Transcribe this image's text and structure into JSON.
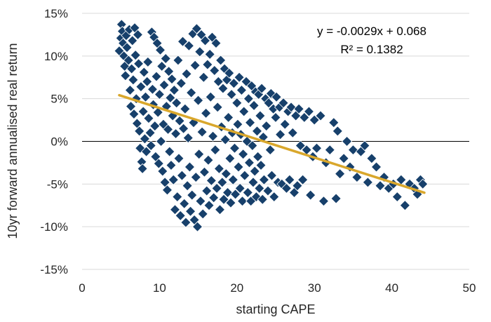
{
  "chart_data": {
    "type": "scatter",
    "xlabel": "starting CAPE",
    "ylabel": "10yr forward annualised real return",
    "xlim": [
      0,
      50
    ],
    "ylim": [
      -0.15,
      0.15
    ],
    "x_ticks": [
      0,
      10,
      20,
      30,
      40,
      50
    ],
    "x_tick_labels": [
      "0",
      "10",
      "20",
      "30",
      "40",
      "50"
    ],
    "y_ticks": [
      -0.15,
      -0.1,
      -0.05,
      0,
      0.05,
      0.1,
      0.15
    ],
    "y_tick_labels": [
      "-15%",
      "-10%",
      "-5%",
      "0%",
      "5%",
      "10%",
      "15%"
    ],
    "grid": "horizontal",
    "marker": "diamond",
    "marker_color": "#17406b",
    "trendline": {
      "slope": -0.0029,
      "intercept": 0.068,
      "x_range": [
        4.8,
        44.2
      ],
      "color": "#d9a72c",
      "equation": "y = -0.0029x + 0.068",
      "r2": "R² = 0.1382"
    },
    "points": [
      [
        4.8,
        0.106
      ],
      [
        5.0,
        0.121
      ],
      [
        5.1,
        0.137
      ],
      [
        5.2,
        0.129
      ],
      [
        5.3,
        0.115
      ],
      [
        5.4,
        0.1
      ],
      [
        5.5,
        0.088
      ],
      [
        5.6,
        0.077
      ],
      [
        5.7,
        0.124
      ],
      [
        5.8,
        0.11
      ],
      [
        6.0,
        0.095
      ],
      [
        6.1,
        0.131
      ],
      [
        6.2,
        0.06
      ],
      [
        6.3,
        0.041
      ],
      [
        6.4,
        0.085
      ],
      [
        6.5,
        0.118
      ],
      [
        6.6,
        0.072
      ],
      [
        6.7,
        0.032
      ],
      [
        6.8,
        0.133
      ],
      [
        6.9,
        0.101
      ],
      [
        7.0,
        0.05
      ],
      [
        7.1,
        0.021
      ],
      [
        7.2,
        0.125
      ],
      [
        7.3,
        0.091
      ],
      [
        7.4,
        0.012
      ],
      [
        7.5,
        -0.008
      ],
      [
        7.6,
        0.064
      ],
      [
        7.7,
        -0.024
      ],
      [
        7.8,
        -0.032
      ],
      [
        7.9,
        0.035
      ],
      [
        8.0,
        0.081
      ],
      [
        8.1,
        0.003
      ],
      [
        8.2,
        0.052
      ],
      [
        8.3,
        -0.012
      ],
      [
        8.4,
        0.07
      ],
      [
        8.5,
        0.093
      ],
      [
        8.6,
        0.027
      ],
      [
        8.8,
        0.01
      ],
      [
        8.9,
        -0.005
      ],
      [
        9.0,
        0.128
      ],
      [
        9.1,
        0.061
      ],
      [
        9.2,
        0.043
      ],
      [
        9.3,
        0.122
      ],
      [
        9.4,
        0.018
      ],
      [
        9.5,
        -0.018
      ],
      [
        9.6,
        0.076
      ],
      [
        9.7,
        0.115
      ],
      [
        9.8,
        0.034
      ],
      [
        9.9,
        -0.026
      ],
      [
        10.0,
        0.055
      ],
      [
        10.1,
        0.107
      ],
      [
        10.2,
        0.0
      ],
      [
        10.3,
        0.088
      ],
      [
        10.4,
        -0.035
      ],
      [
        10.5,
        0.02
      ],
      [
        10.6,
        0.066
      ],
      [
        10.7,
        -0.048
      ],
      [
        10.8,
        0.097
      ],
      [
        10.9,
        0.041
      ],
      [
        11.0,
        -0.057
      ],
      [
        11.1,
        0.014
      ],
      [
        11.2,
        0.082
      ],
      [
        11.3,
        -0.012
      ],
      [
        11.4,
        0.051
      ],
      [
        11.5,
        -0.028
      ],
      [
        11.6,
        0.073
      ],
      [
        11.7,
        0.03
      ],
      [
        11.8,
        -0.045
      ],
      [
        11.9,
        0.06
      ],
      [
        12.0,
        -0.08
      ],
      [
        12.1,
        0.009
      ],
      [
        12.2,
        0.045
      ],
      [
        12.3,
        -0.065
      ],
      [
        12.4,
        0.095
      ],
      [
        12.5,
        -0.02
      ],
      [
        12.6,
        0.024
      ],
      [
        12.7,
        -0.087
      ],
      [
        12.8,
        0.068
      ],
      [
        12.9,
        -0.04
      ],
      [
        13.0,
        0.117
      ],
      [
        13.1,
        0.015
      ],
      [
        13.2,
        -0.073
      ],
      [
        13.3,
        0.038
      ],
      [
        13.4,
        -0.095
      ],
      [
        13.5,
        0.079
      ],
      [
        13.6,
        -0.052
      ],
      [
        13.7,
        0.004
      ],
      [
        13.8,
        0.112
      ],
      [
        13.9,
        -0.03
      ],
      [
        14.0,
        -0.082
      ],
      [
        14.1,
        0.057
      ],
      [
        14.2,
        -0.063
      ],
      [
        14.3,
        0.126
      ],
      [
        14.4,
        0.022
      ],
      [
        14.5,
        -0.092
      ],
      [
        14.6,
        0.089
      ],
      [
        14.7,
        -0.042
      ],
      [
        14.8,
        0.132
      ],
      [
        14.9,
        -0.1
      ],
      [
        15.0,
        0.048
      ],
      [
        15.1,
        -0.015
      ],
      [
        15.2,
        0.105
      ],
      [
        15.3,
        -0.07
      ],
      [
        15.4,
        0.125
      ],
      [
        15.5,
        0.011
      ],
      [
        15.6,
        -0.085
      ],
      [
        15.7,
        0.075
      ],
      [
        15.8,
        -0.036
      ],
      [
        15.9,
        0.118
      ],
      [
        16.0,
        0.033
      ],
      [
        16.1,
        -0.058
      ],
      [
        16.2,
        0.09
      ],
      [
        16.3,
        -0.022
      ],
      [
        16.4,
        -0.075
      ],
      [
        16.5,
        0.102
      ],
      [
        16.6,
        0.052
      ],
      [
        16.7,
        -0.046
      ],
      [
        16.8,
        0.122
      ],
      [
        16.9,
        0.006
      ],
      [
        17.0,
        -0.066
      ],
      [
        17.1,
        0.083
      ],
      [
        17.2,
        -0.01
      ],
      [
        17.3,
        0.115
      ],
      [
        17.4,
        -0.055
      ],
      [
        17.5,
        0.04
      ],
      [
        17.6,
        0.07
      ],
      [
        17.7,
        -0.032
      ],
      [
        17.8,
        -0.08
      ],
      [
        17.9,
        0.095
      ],
      [
        18.0,
        0.017
      ],
      [
        18.1,
        -0.048
      ],
      [
        18.2,
        0.062
      ],
      [
        18.3,
        -0.068
      ],
      [
        18.4,
        0.085
      ],
      [
        18.5,
        0.002
      ],
      [
        18.6,
        -0.038
      ],
      [
        18.7,
        0.072
      ],
      [
        18.8,
        -0.06
      ],
      [
        18.9,
        0.028
      ],
      [
        19.0,
        0.08
      ],
      [
        19.1,
        -0.02
      ],
      [
        19.2,
        -0.072
      ],
      [
        19.3,
        0.055
      ],
      [
        19.4,
        0.01
      ],
      [
        19.5,
        -0.045
      ],
      [
        19.6,
        0.068
      ],
      [
        19.7,
        -0.008
      ],
      [
        19.8,
        -0.062
      ],
      [
        20.0,
        0.045
      ],
      [
        20.1,
        0.02
      ],
      [
        20.2,
        -0.03
      ],
      [
        20.3,
        0.075
      ],
      [
        20.4,
        -0.055
      ],
      [
        20.5,
        0.008
      ],
      [
        20.6,
        0.06
      ],
      [
        20.7,
        -0.07
      ],
      [
        20.8,
        -0.015
      ],
      [
        20.9,
        0.035
      ],
      [
        21.0,
        -0.04
      ],
      [
        21.2,
        0.07
      ],
      [
        21.3,
        0.0
      ],
      [
        21.4,
        -0.06
      ],
      [
        21.5,
        0.05
      ],
      [
        21.6,
        -0.025
      ],
      [
        21.7,
        0.022
      ],
      [
        21.8,
        -0.07
      ],
      [
        21.9,
        0.065
      ],
      [
        22.0,
        -0.005
      ],
      [
        22.1,
        -0.048
      ],
      [
        22.2,
        0.042
      ],
      [
        22.3,
        -0.035
      ],
      [
        22.4,
        0.058
      ],
      [
        22.5,
        -0.065
      ],
      [
        22.6,
        0.012
      ],
      [
        22.7,
        -0.018
      ],
      [
        22.8,
        0.055
      ],
      [
        22.9,
        -0.055
      ],
      [
        23.0,
        0.03
      ],
      [
        23.1,
        -0.028
      ],
      [
        23.2,
        0.062
      ],
      [
        23.3,
        -0.068
      ],
      [
        23.4,
        0.005
      ],
      [
        23.5,
        -0.045
      ],
      [
        23.7,
        0.05
      ],
      [
        23.8,
        0.018
      ],
      [
        24.0,
        -0.058
      ],
      [
        24.1,
        0.045
      ],
      [
        24.3,
        -0.01
      ],
      [
        24.4,
        0.056
      ],
      [
        24.5,
        -0.04
      ],
      [
        24.7,
        0.038
      ],
      [
        24.8,
        -0.065
      ],
      [
        25.0,
        0.028
      ],
      [
        25.1,
        0.052
      ],
      [
        25.3,
        -0.048
      ],
      [
        25.5,
        0.04
      ],
      [
        25.6,
        0.008
      ],
      [
        25.8,
        -0.05
      ],
      [
        26.0,
        0.045
      ],
      [
        26.2,
        0.02
      ],
      [
        26.4,
        -0.055
      ],
      [
        26.6,
        0.035
      ],
      [
        26.8,
        -0.045
      ],
      [
        27.0,
        0.04
      ],
      [
        27.2,
        0.01
      ],
      [
        27.4,
        -0.06
      ],
      [
        27.6,
        0.03
      ],
      [
        27.8,
        -0.052
      ],
      [
        28.0,
        0.038
      ],
      [
        28.2,
        -0.005
      ],
      [
        28.5,
        -0.045
      ],
      [
        28.7,
        0.028
      ],
      [
        29.0,
        -0.01
      ],
      [
        29.3,
        0.035
      ],
      [
        29.5,
        -0.063
      ],
      [
        29.8,
        -0.018
      ],
      [
        30.0,
        0.025
      ],
      [
        30.3,
        -0.008
      ],
      [
        30.8,
        0.03
      ],
      [
        31.2,
        -0.07
      ],
      [
        31.5,
        -0.025
      ],
      [
        32.0,
        -0.01
      ],
      [
        32.5,
        0.022
      ],
      [
        32.8,
        -0.067
      ],
      [
        33.0,
        0.012
      ],
      [
        33.3,
        -0.038
      ],
      [
        33.8,
        -0.02
      ],
      [
        34.2,
        0.0
      ],
      [
        34.6,
        -0.03
      ],
      [
        35.0,
        -0.01
      ],
      [
        35.5,
        -0.042
      ],
      [
        36.0,
        -0.012
      ],
      [
        36.5,
        -0.005
      ],
      [
        36.9,
        -0.048
      ],
      [
        37.4,
        -0.02
      ],
      [
        38.0,
        -0.03
      ],
      [
        38.5,
        -0.052
      ],
      [
        39.0,
        -0.042
      ],
      [
        39.6,
        -0.055
      ],
      [
        40.2,
        -0.05
      ],
      [
        40.7,
        -0.065
      ],
      [
        41.2,
        -0.045
      ],
      [
        41.7,
        -0.075
      ],
      [
        42.3,
        -0.05
      ],
      [
        42.9,
        -0.055
      ],
      [
        43.3,
        -0.062
      ],
      [
        43.7,
        -0.045
      ],
      [
        44.0,
        -0.05
      ]
    ]
  }
}
